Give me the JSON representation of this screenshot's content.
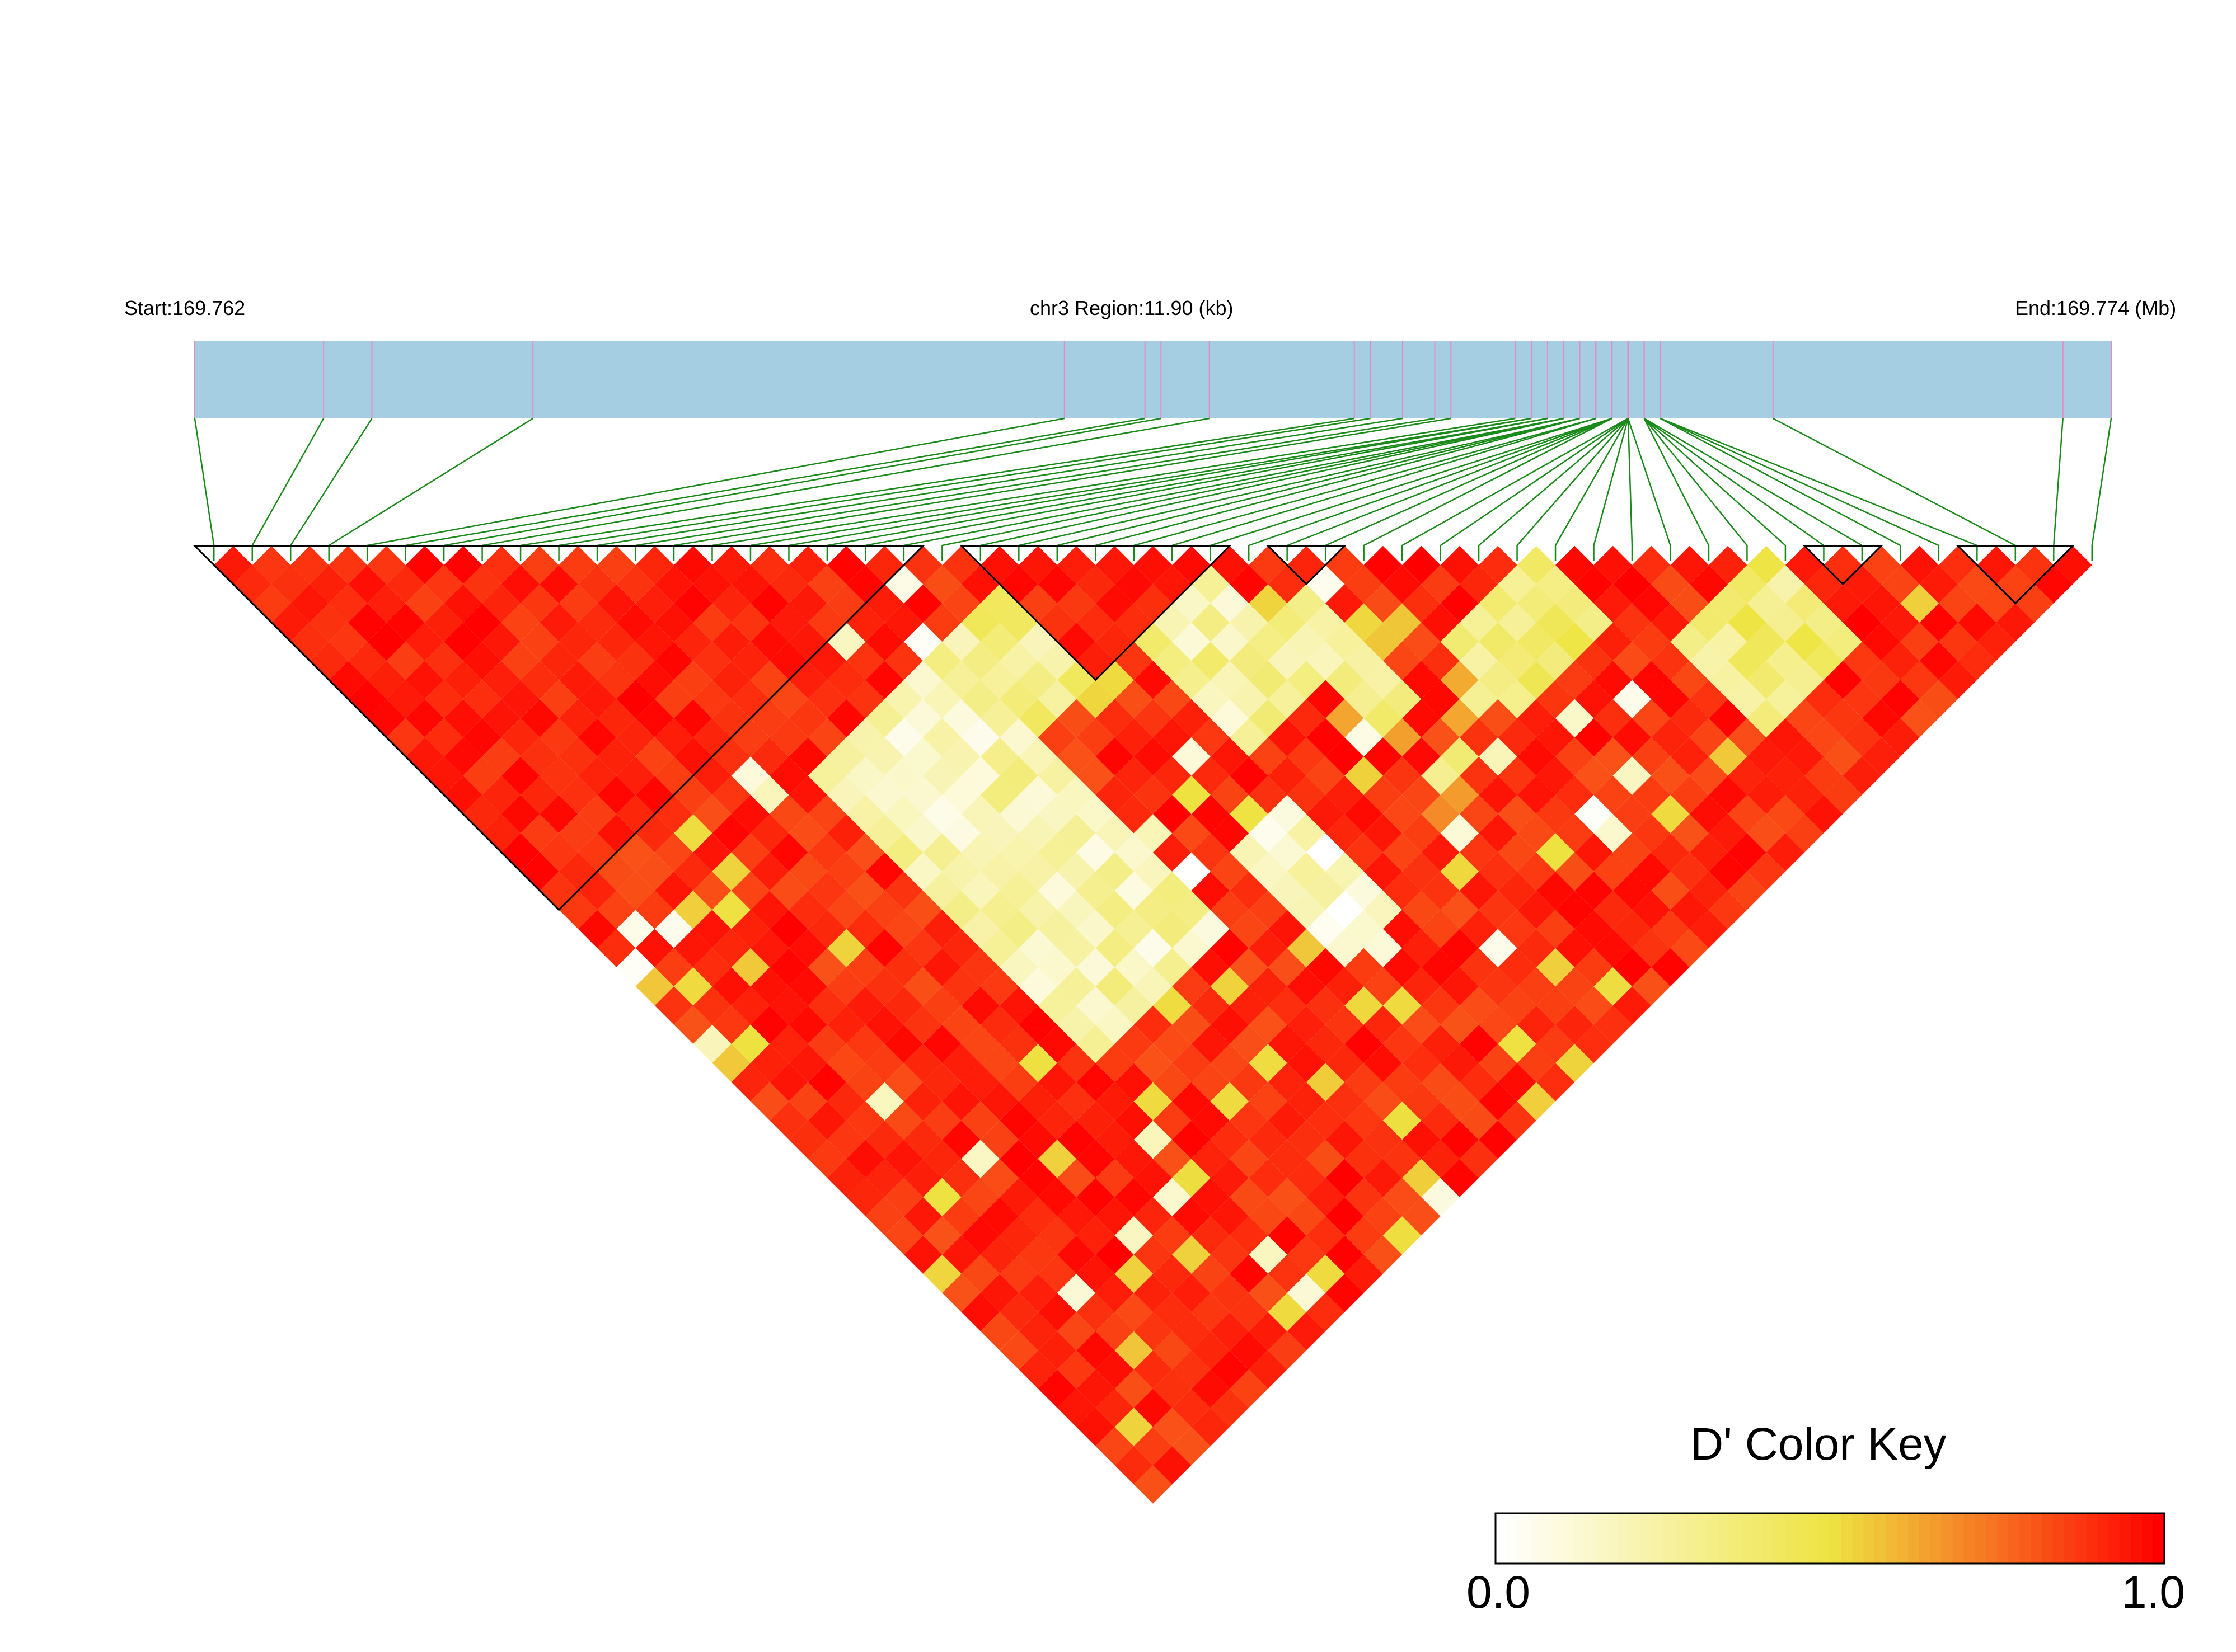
{
  "header": {
    "start_label": "Start:169.762",
    "region_label": "chr3 Region:11.90 (kb)",
    "end_label": "End:169.774 (Mb)"
  },
  "colors": {
    "region_bar": "#a6cee3",
    "snp_tick": "#e78ac3",
    "connector": "#1a8a1a",
    "block_outline": "#000000",
    "ld_low": "#ffffff",
    "ld_mid": "#eee442",
    "ld_high": "#ff0000"
  },
  "color_key": {
    "title": "D' Color Key",
    "min_label": "0.0",
    "max_label": "1.0",
    "min": 0.0,
    "max": 1.0
  },
  "chart_data": {
    "type": "heatmap",
    "description_metric": "D'",
    "region": {
      "chromosome": "chr3",
      "start_mb": 169.762,
      "end_mb": 169.774,
      "length_kb": 11.9
    },
    "n_snps": 50,
    "snp_positions_mb": [
      169.762,
      169.7628,
      169.7631,
      169.7641,
      169.7674,
      169.7679,
      169.768,
      169.7683,
      169.7692,
      169.7693,
      169.7695,
      169.7697,
      169.7698,
      169.7702,
      169.7703,
      169.7703,
      169.7704,
      169.7704,
      169.7705,
      169.7705,
      169.7705,
      169.7706,
      169.7706,
      169.7706,
      169.7707,
      169.7707,
      169.7708,
      169.7708,
      169.7708,
      169.7708,
      169.7708,
      169.7709,
      169.7709,
      169.7709,
      169.7709,
      169.7709,
      169.7709,
      169.7709,
      169.7709,
      169.771,
      169.771,
      169.771,
      169.771,
      169.771,
      169.7711,
      169.7711,
      169.7711,
      169.7718,
      169.7736,
      169.7739
    ],
    "ld_blocks": [
      {
        "from_snp": 1,
        "to_snp": 19
      },
      {
        "from_snp": 21,
        "to_snp": 27
      },
      {
        "from_snp": 29,
        "to_snp": 30
      },
      {
        "from_snp": 43,
        "to_snp": 44
      },
      {
        "from_snp": 47,
        "to_snp": 49
      }
    ],
    "low_dprime_regions": [
      {
        "i_from": 10,
        "i_to": 16,
        "j_from": 22,
        "j_to": 36,
        "value": 0.2
      },
      {
        "i_from": 11,
        "i_to": 13,
        "j_from": 14,
        "j_to": 16,
        "value": 0.45
      },
      {
        "i_from": 6,
        "i_to": 8,
        "j_from": 9,
        "j_to": 13,
        "value": 0.05
      },
      {
        "i_from": 16,
        "i_to": 19,
        "j_from": 22,
        "j_to": 26,
        "value": 0.3
      },
      {
        "i_from": 22,
        "i_to": 25,
        "j_from": 27,
        "j_to": 32,
        "value": 0.25
      },
      {
        "i_from": 30,
        "i_to": 34,
        "j_from": 35,
        "j_to": 38,
        "value": 0.35
      },
      {
        "i_from": 19,
        "i_to": 21,
        "j_from": 35,
        "j_to": 40,
        "value": 0.15
      },
      {
        "i_from": 26,
        "i_to": 27,
        "j_from": 30,
        "j_to": 35,
        "value": 0.3
      },
      {
        "i_from": 36,
        "i_to": 40,
        "j_from": 41,
        "j_to": 45,
        "value": 0.35
      }
    ]
  }
}
